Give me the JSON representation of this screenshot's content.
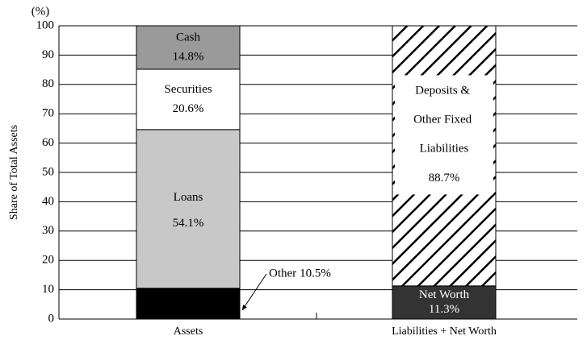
{
  "chart_data": {
    "type": "stacked_bar",
    "ylabel": "Share of Total Assets",
    "yunit": "(%)",
    "categories": [
      "Assets",
      "Liabilities + Net Worth"
    ],
    "series": [
      {
        "name": "Other",
        "color": "#000000",
        "values": [
          10.5,
          null
        ],
        "value_labels": [
          "10.5%",
          null
        ]
      },
      {
        "name": "Loans",
        "color": "#c8c8c8",
        "values": [
          54.1,
          null
        ],
        "value_labels": [
          "54.1%",
          null
        ]
      },
      {
        "name": "Securities",
        "color": "#ffffff",
        "values": [
          20.6,
          null
        ],
        "value_labels": [
          "20.6%",
          null
        ]
      },
      {
        "name": "Cash",
        "color": "#9a9a9a",
        "values": [
          14.8,
          null
        ],
        "value_labels": [
          "14.8%",
          null
        ]
      },
      {
        "name": "Net Worth",
        "color": "#333333",
        "values": [
          null,
          11.3
        ],
        "value_labels": [
          null,
          "11.3%"
        ]
      },
      {
        "name": "Deposits & Other Fixed Liabilities",
        "color": "hatch",
        "values": [
          null,
          88.7
        ],
        "value_labels": [
          null,
          "88.7%"
        ]
      }
    ],
    "ylim": [
      0,
      100
    ],
    "yticks": [
      0,
      10,
      20,
      30,
      40,
      50,
      60,
      70,
      80,
      90,
      100
    ],
    "grid": true
  }
}
